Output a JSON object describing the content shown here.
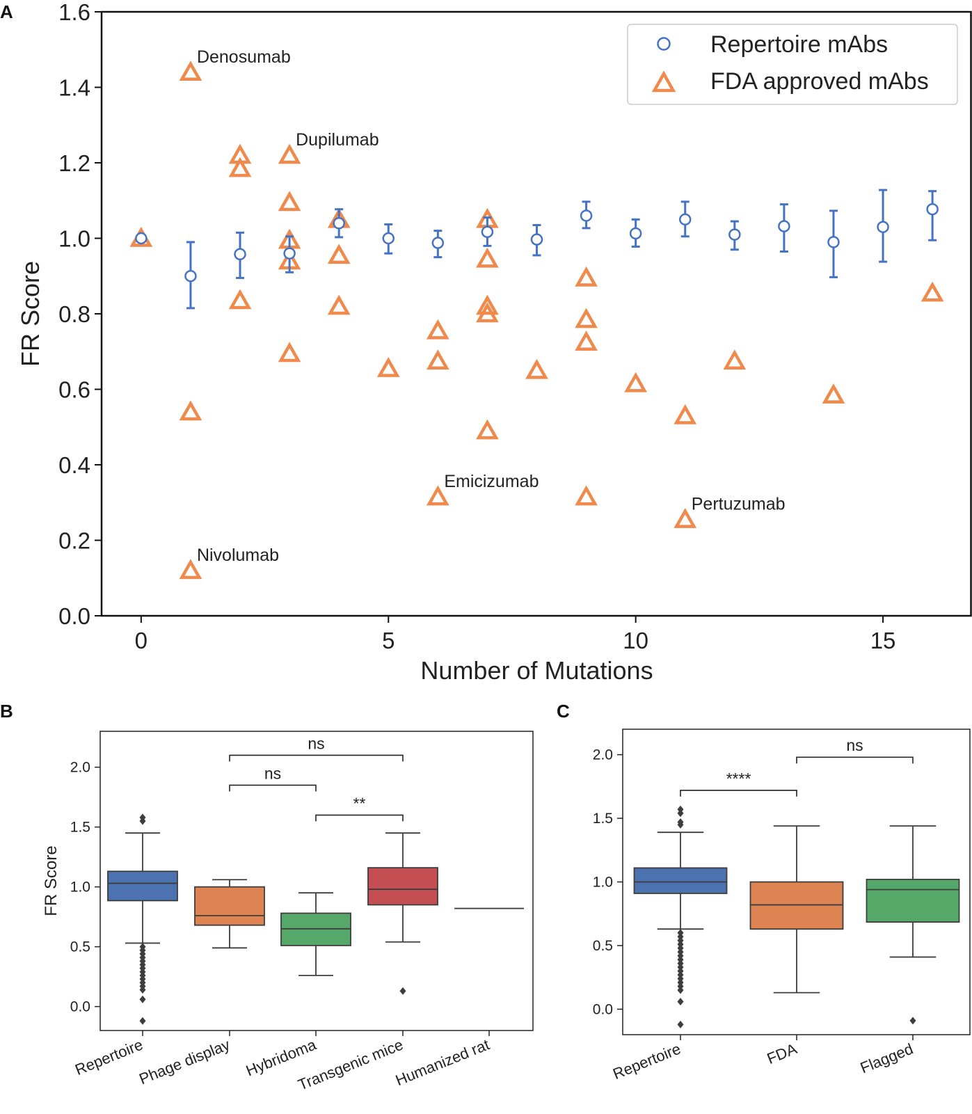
{
  "chart_data": [
    {
      "panel": "A",
      "type": "scatter",
      "xlabel": "Number of Mutations",
      "ylabel": "FR Score",
      "xlim": [
        -0.8,
        16.8
      ],
      "ylim": [
        0.0,
        1.6
      ],
      "xticks": [
        "0",
        "5",
        "10",
        "15"
      ],
      "xtick_values": [
        0,
        5,
        10,
        15
      ],
      "yticks": [
        "0.0",
        "0.2",
        "0.4",
        "0.6",
        "0.8",
        "1.0",
        "1.2",
        "1.4",
        "1.6"
      ],
      "ytick_values": [
        0.0,
        0.2,
        0.4,
        0.6,
        0.8,
        1.0,
        1.2,
        1.4,
        1.6
      ],
      "colors": {
        "repertoire": "#4472c4",
        "fda": "#ef8a4c"
      },
      "legend": {
        "position": "top-right",
        "entries": [
          {
            "key": "repertoire",
            "label": "Repertoire mAbs"
          },
          {
            "key": "fda",
            "label": "FDA approved mAbs"
          }
        ]
      },
      "series": [
        {
          "name": "Repertoire mAbs",
          "key": "repertoire",
          "marker": "circle",
          "points": [
            {
              "x": 0,
              "y": 1.0,
              "lo": 1.0,
              "hi": 1.0
            },
            {
              "x": 1,
              "y": 0.9,
              "lo": 0.815,
              "hi": 0.99
            },
            {
              "x": 2,
              "y": 0.958,
              "lo": 0.895,
              "hi": 1.015
            },
            {
              "x": 3,
              "y": 0.96,
              "lo": 0.91,
              "hi": 1.005
            },
            {
              "x": 4,
              "y": 1.04,
              "lo": 1.003,
              "hi": 1.077
            },
            {
              "x": 5,
              "y": 1.0,
              "lo": 0.96,
              "hi": 1.037
            },
            {
              "x": 6,
              "y": 0.988,
              "lo": 0.95,
              "hi": 1.02
            },
            {
              "x": 7,
              "y": 1.017,
              "lo": 0.98,
              "hi": 1.055
            },
            {
              "x": 8,
              "y": 0.997,
              "lo": 0.955,
              "hi": 1.035
            },
            {
              "x": 9,
              "y": 1.06,
              "lo": 1.027,
              "hi": 1.097
            },
            {
              "x": 10,
              "y": 1.013,
              "lo": 0.978,
              "hi": 1.05
            },
            {
              "x": 11,
              "y": 1.05,
              "lo": 1.005,
              "hi": 1.097
            },
            {
              "x": 12,
              "y": 1.01,
              "lo": 0.97,
              "hi": 1.045
            },
            {
              "x": 13,
              "y": 1.032,
              "lo": 0.965,
              "hi": 1.09
            },
            {
              "x": 14,
              "y": 0.99,
              "lo": 0.897,
              "hi": 1.073
            },
            {
              "x": 15,
              "y": 1.03,
              "lo": 0.938,
              "hi": 1.128
            },
            {
              "x": 16,
              "y": 1.077,
              "lo": 0.995,
              "hi": 1.125
            }
          ]
        },
        {
          "name": "FDA approved mAbs",
          "key": "fda",
          "marker": "triangle",
          "points": [
            {
              "x": 0,
              "y": 1.0
            },
            {
              "x": 1,
              "y": 1.44
            },
            {
              "x": 1,
              "y": 0.54
            },
            {
              "x": 1,
              "y": 0.12
            },
            {
              "x": 2,
              "y": 1.22
            },
            {
              "x": 2,
              "y": 1.185
            },
            {
              "x": 2,
              "y": 0.835
            },
            {
              "x": 3,
              "y": 1.22
            },
            {
              "x": 3,
              "y": 1.095
            },
            {
              "x": 3,
              "y": 0.995
            },
            {
              "x": 3,
              "y": 0.94
            },
            {
              "x": 3,
              "y": 0.695
            },
            {
              "x": 4,
              "y": 1.05
            },
            {
              "x": 4,
              "y": 0.955
            },
            {
              "x": 4,
              "y": 0.82
            },
            {
              "x": 5,
              "y": 0.655
            },
            {
              "x": 6,
              "y": 0.755
            },
            {
              "x": 6,
              "y": 0.675
            },
            {
              "x": 6,
              "y": 0.315
            },
            {
              "x": 7,
              "y": 1.05
            },
            {
              "x": 7,
              "y": 0.945
            },
            {
              "x": 7,
              "y": 0.82
            },
            {
              "x": 7,
              "y": 0.8
            },
            {
              "x": 7,
              "y": 0.49
            },
            {
              "x": 8,
              "y": 0.65
            },
            {
              "x": 9,
              "y": 0.895
            },
            {
              "x": 9,
              "y": 0.785
            },
            {
              "x": 9,
              "y": 0.725
            },
            {
              "x": 9,
              "y": 0.315
            },
            {
              "x": 10,
              "y": 0.615
            },
            {
              "x": 11,
              "y": 0.53
            },
            {
              "x": 11,
              "y": 0.255
            },
            {
              "x": 12,
              "y": 0.675
            },
            {
              "x": 14,
              "y": 0.585
            },
            {
              "x": 16,
              "y": 0.855
            }
          ]
        }
      ],
      "annotations": [
        {
          "text": "Denosumab",
          "x": 1,
          "y": 1.44
        },
        {
          "text": "Dupilumab",
          "x": 3,
          "y": 1.22
        },
        {
          "text": "Emicizumab",
          "x": 6,
          "y": 0.315
        },
        {
          "text": "Pertuzumab",
          "x": 11,
          "y": 0.255
        },
        {
          "text": "Nivolumab",
          "x": 1,
          "y": 0.12
        }
      ]
    },
    {
      "panel": "B",
      "type": "box",
      "ylabel": "FR Score",
      "ylim": [
        -0.2,
        2.3
      ],
      "yticks": [
        "0.0",
        "0.5",
        "1.0",
        "1.5",
        "2.0"
      ],
      "ytick_values": [
        0.0,
        0.5,
        1.0,
        1.5,
        2.0
      ],
      "categories": [
        "Repertoire",
        "Phage display",
        "Hybridoma",
        "Transgenic mice",
        "Humanized rat"
      ],
      "boxes": [
        {
          "q1": 0.885,
          "median": 1.03,
          "q3": 1.13,
          "whislo": 0.53,
          "whishi": 1.45,
          "color": "#4c72b0",
          "fliers": [
            1.58,
            1.55,
            0.5,
            0.47,
            0.44,
            0.41,
            0.38,
            0.35,
            0.32,
            0.29,
            0.26,
            0.23,
            0.2,
            0.17,
            0.14,
            0.06,
            -0.12
          ]
        },
        {
          "q1": 0.68,
          "median": 0.76,
          "q3": 1.0,
          "whislo": 0.49,
          "whishi": 1.06,
          "color": "#dd8452",
          "fliers": []
        },
        {
          "q1": 0.51,
          "median": 0.65,
          "q3": 0.78,
          "whislo": 0.26,
          "whishi": 0.95,
          "color": "#55a868",
          "fliers": []
        },
        {
          "q1": 0.85,
          "median": 0.98,
          "q3": 1.16,
          "whislo": 0.54,
          "whishi": 1.45,
          "color": "#c44e52",
          "fliers": [
            0.13
          ]
        },
        {
          "q1": 0.82,
          "median": 0.82,
          "q3": 0.82,
          "whislo": 0.82,
          "whishi": 0.82,
          "color": "#8172b3",
          "fliers": []
        }
      ],
      "brackets": [
        {
          "from": 1,
          "to": 3,
          "y": 2.1,
          "label": "ns"
        },
        {
          "from": 1,
          "to": 2,
          "y": 1.85,
          "label": "ns"
        },
        {
          "from": 2,
          "to": 3,
          "y": 1.6,
          "label": "**"
        }
      ]
    },
    {
      "panel": "C",
      "type": "box",
      "ylabel": "",
      "ylim": [
        -0.2,
        2.2
      ],
      "yticks": [
        "0.0",
        "0.5",
        "1.0",
        "1.5",
        "2.0"
      ],
      "ytick_values": [
        0.0,
        0.5,
        1.0,
        1.5,
        2.0
      ],
      "categories": [
        "Repertoire",
        "FDA",
        "Flagged"
      ],
      "boxes": [
        {
          "q1": 0.91,
          "median": 1.0,
          "q3": 1.11,
          "whislo": 0.63,
          "whishi": 1.39,
          "color": "#4c72b0",
          "fliers": [
            1.57,
            1.54,
            1.47,
            1.45,
            0.6,
            0.57,
            0.54,
            0.51,
            0.48,
            0.45,
            0.42,
            0.39,
            0.36,
            0.33,
            0.3,
            0.27,
            0.24,
            0.21,
            0.18,
            0.15,
            0.06,
            -0.12
          ]
        },
        {
          "q1": 0.63,
          "median": 0.82,
          "q3": 1.0,
          "whislo": 0.13,
          "whishi": 1.44,
          "color": "#dd8452",
          "fliers": []
        },
        {
          "q1": 0.685,
          "median": 0.94,
          "q3": 1.02,
          "whislo": 0.41,
          "whishi": 1.44,
          "color": "#55a868",
          "fliers": [
            -0.09
          ]
        }
      ],
      "brackets": [
        {
          "from": 1,
          "to": 2,
          "y": 1.98,
          "label": "ns"
        },
        {
          "from": 0,
          "to": 1,
          "y": 1.72,
          "label": "****"
        }
      ]
    }
  ],
  "panel_letters": {
    "a": "A",
    "b": "B",
    "c": "C"
  }
}
